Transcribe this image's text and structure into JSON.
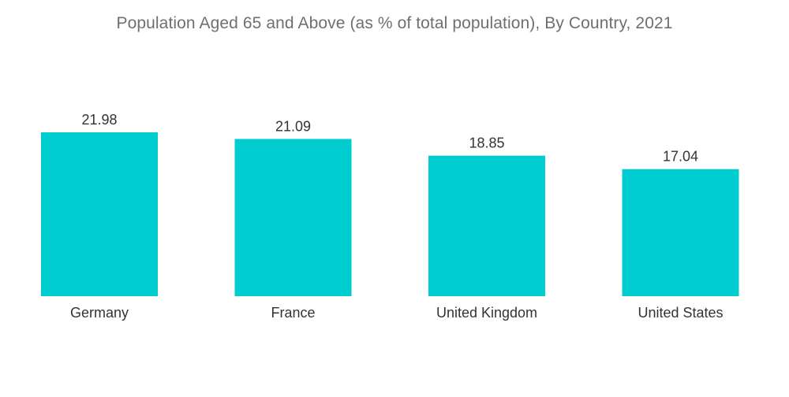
{
  "chart_data": {
    "type": "bar",
    "title": "Population Aged 65 and Above (as % of total population), By Country, 2021",
    "categories": [
      "Germany",
      "France",
      "United Kingdom",
      "United States"
    ],
    "values": [
      21.98,
      21.09,
      18.85,
      17.04
    ],
    "value_labels": [
      "21.98",
      "21.09",
      "18.85",
      "17.04"
    ],
    "xlabel": "",
    "ylabel": "",
    "ylim": [
      0,
      21.98
    ],
    "grid": false,
    "legend": "none",
    "bar_color": "#00cdd0"
  }
}
